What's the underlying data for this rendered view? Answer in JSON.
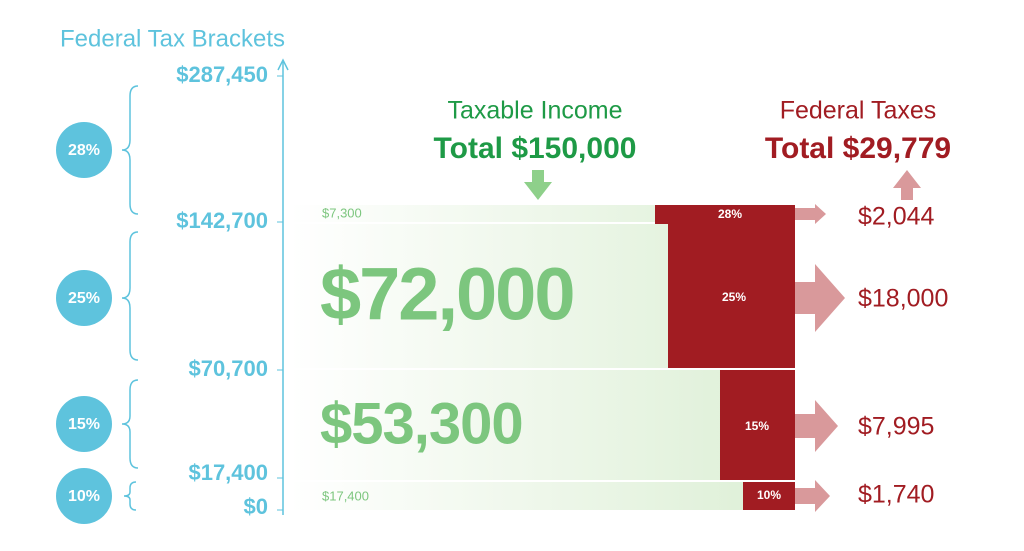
{
  "header": {
    "title": "Federal Tax Brackets"
  },
  "thresholds": [
    "$287,450",
    "$142,700",
    "$70,700",
    "$17,400",
    "$0"
  ],
  "income": {
    "label": "Taxable Income",
    "total": "Total $150,000"
  },
  "taxes": {
    "label": "Federal Taxes",
    "total": "Total $29,779"
  },
  "brackets": [
    {
      "rate": "28%",
      "income": "$7,300",
      "tax": "$2,044"
    },
    {
      "rate": "25%",
      "income": "$72,000",
      "tax": "$18,000"
    },
    {
      "rate": "15%",
      "income": "$53,300",
      "tax": "$7,995"
    },
    {
      "rate": "10%",
      "income": "$17,400",
      "tax": "$1,740"
    }
  ]
}
